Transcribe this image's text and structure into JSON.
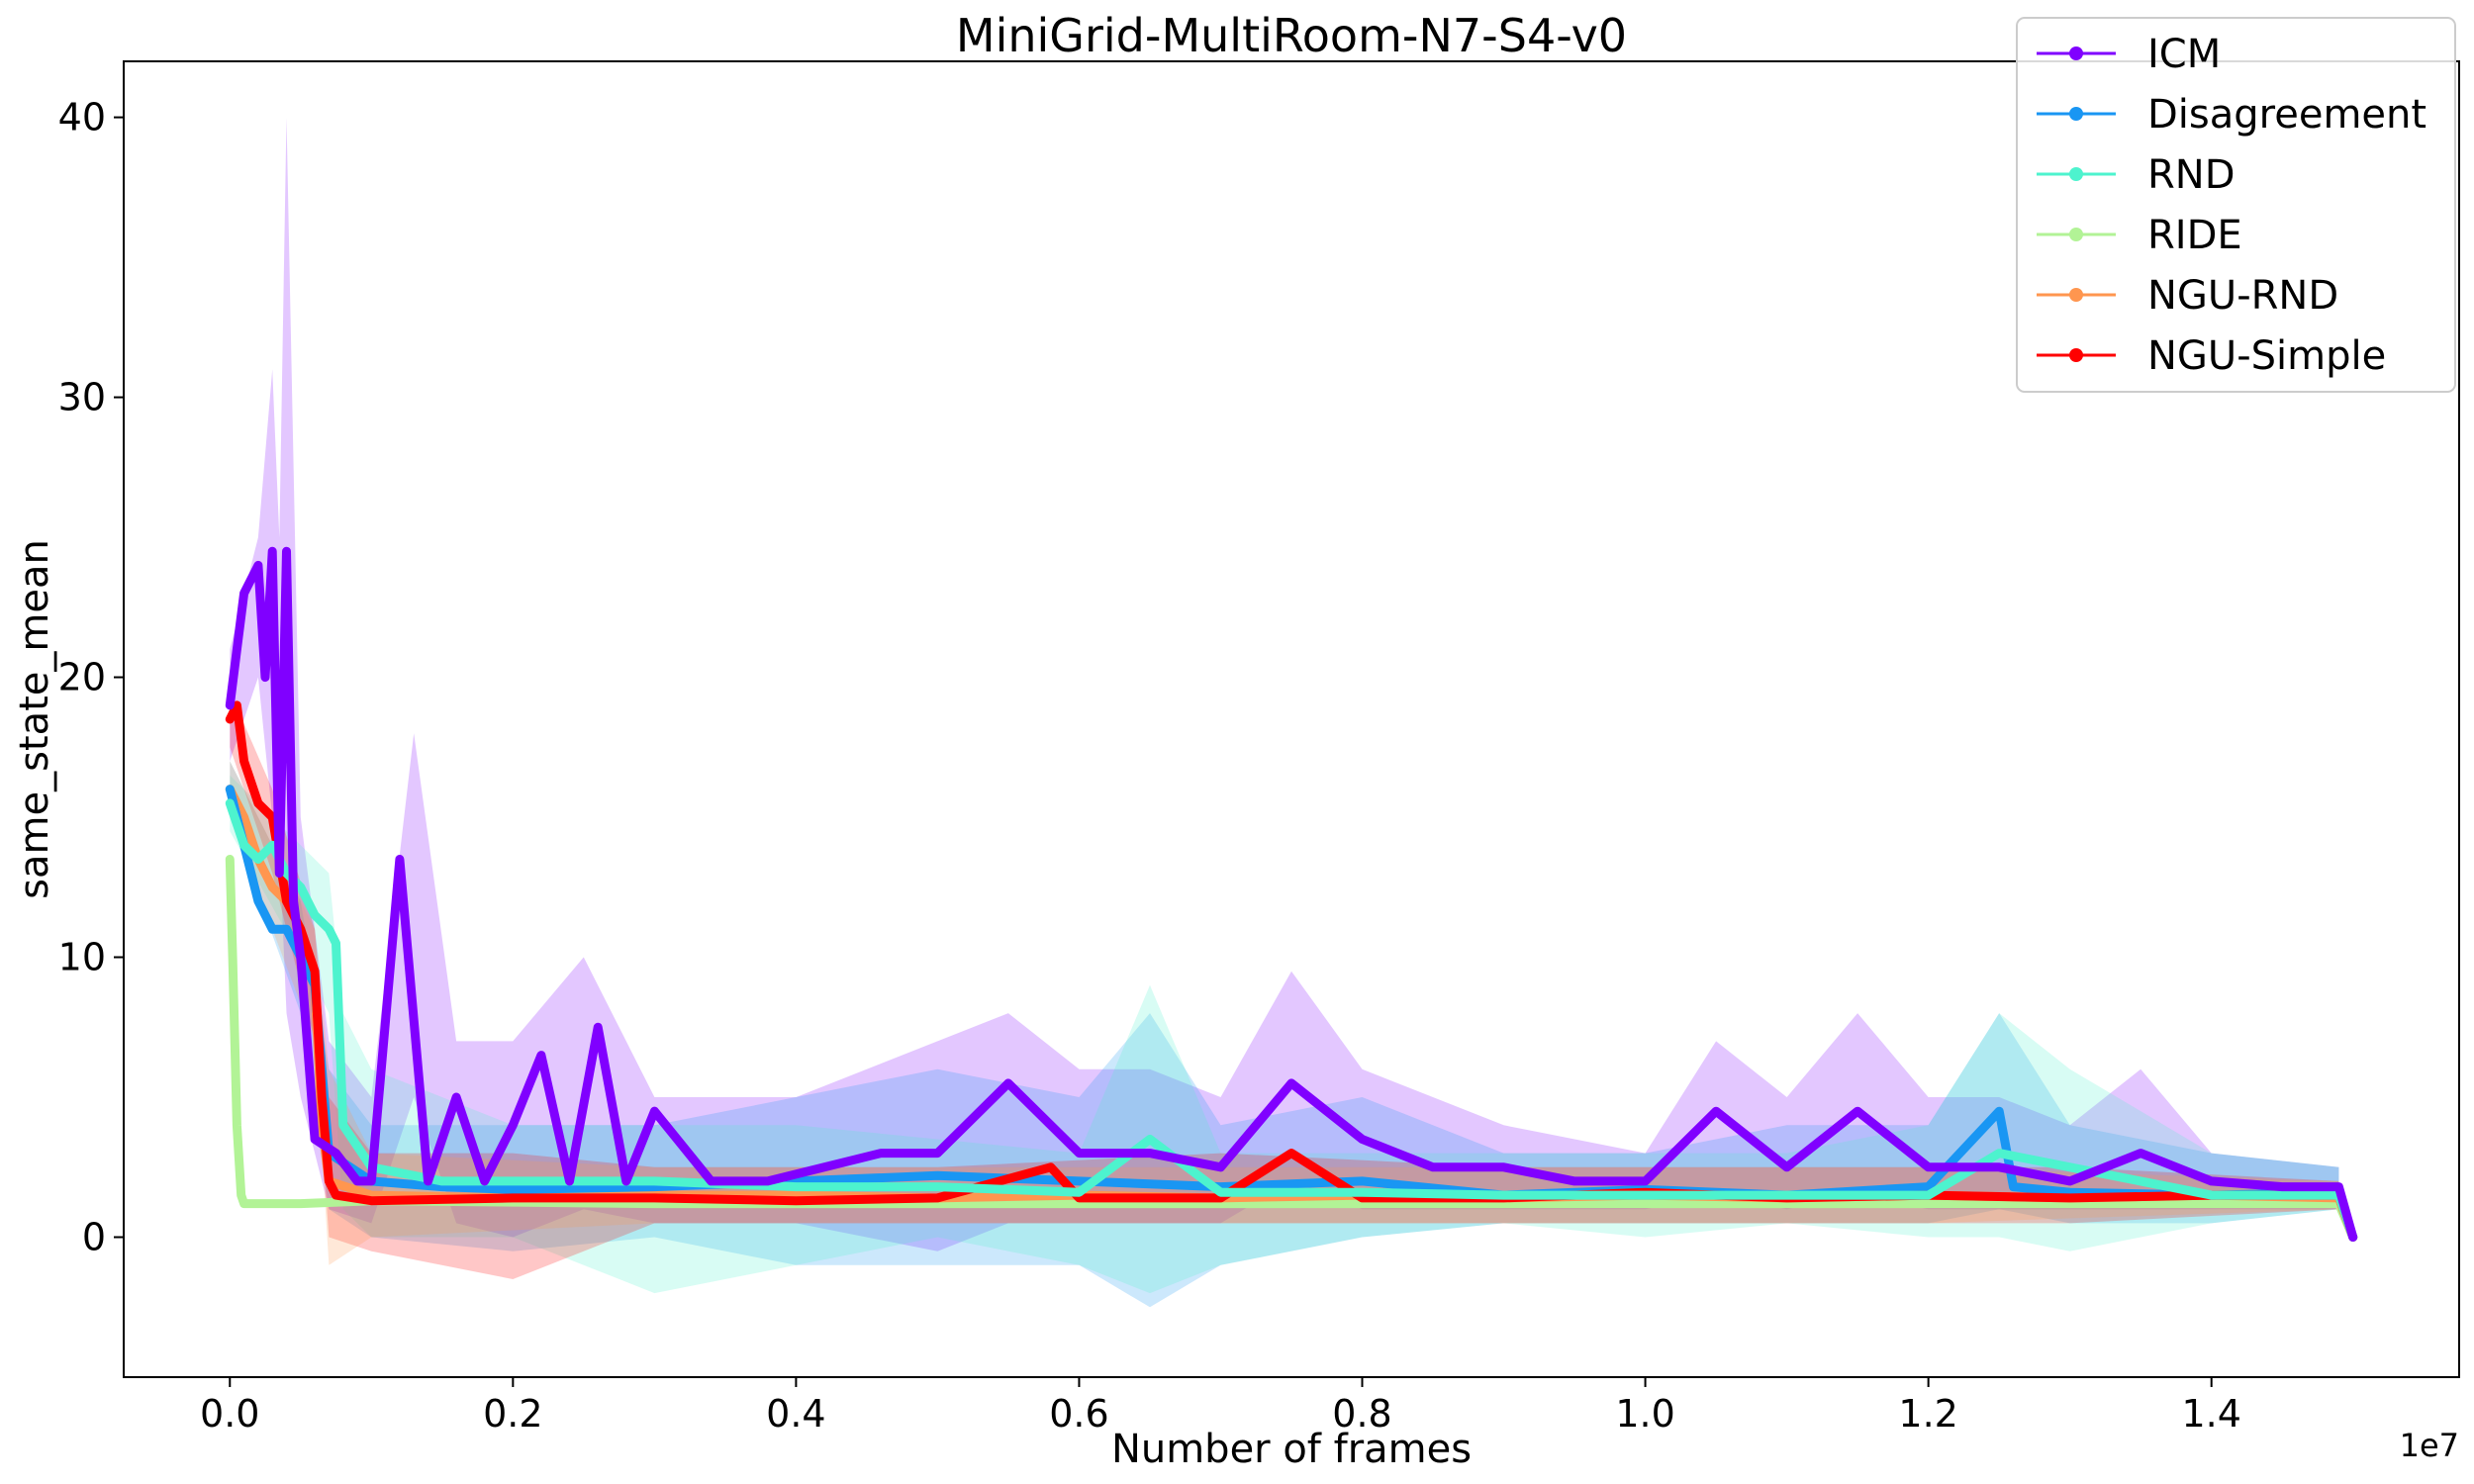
{
  "chart_data": {
    "type": "line",
    "title": "MiniGrid-MultiRoom-N7-S4-v0",
    "xlabel": "Number of frames",
    "ylabel": "same_state_mean",
    "x_offset_label": "1e7",
    "xlim": [
      -0.075,
      1.575
    ],
    "ylim": [
      -5,
      42
    ],
    "x_ticks": [
      0.0,
      0.2,
      0.4,
      0.6,
      0.8,
      1.0,
      1.2,
      1.4
    ],
    "x_tick_labels": [
      "0.0",
      "0.2",
      "0.4",
      "0.6",
      "0.8",
      "1.0",
      "1.2",
      "1.4"
    ],
    "y_ticks": [
      0,
      10,
      20,
      30,
      40
    ],
    "y_tick_labels": [
      "0",
      "10",
      "20",
      "30",
      "40"
    ],
    "grid": false,
    "legend_position": "top-right",
    "series": [
      {
        "name": "ICM",
        "color": "#8000ff",
        "x": [
          0.0,
          0.005,
          0.01,
          0.02,
          0.025,
          0.03,
          0.035,
          0.04,
          0.045,
          0.05,
          0.06,
          0.075,
          0.09,
          0.1,
          0.12,
          0.14,
          0.16,
          0.18,
          0.2,
          0.22,
          0.24,
          0.26,
          0.28,
          0.3,
          0.34,
          0.38,
          0.42,
          0.46,
          0.5,
          0.55,
          0.6,
          0.65,
          0.7,
          0.75,
          0.8,
          0.85,
          0.9,
          0.95,
          1.0,
          1.05,
          1.1,
          1.15,
          1.2,
          1.25,
          1.3,
          1.35,
          1.4,
          1.45,
          1.49,
          1.5
        ],
        "y": [
          19,
          21,
          23,
          24,
          20,
          24.5,
          13,
          24.5,
          12,
          10,
          3.5,
          3,
          2,
          2,
          13.5,
          2,
          5,
          2,
          4,
          6.5,
          2,
          7.5,
          2,
          4.5,
          2,
          2,
          2.5,
          3,
          3,
          5.5,
          3,
          3,
          2.5,
          5.5,
          3.5,
          2.5,
          2.5,
          2,
          2,
          4.5,
          2.5,
          4.5,
          2.5,
          2.5,
          2,
          3,
          2,
          1.8,
          1.8,
          0
        ]
      },
      {
        "name": "Disagreement",
        "color": "#1996f3",
        "x": [
          0.0,
          0.01,
          0.02,
          0.03,
          0.04,
          0.05,
          0.06,
          0.07,
          0.1,
          0.15,
          0.2,
          0.3,
          0.4,
          0.5,
          0.6,
          0.7,
          0.8,
          0.9,
          1.0,
          1.1,
          1.2,
          1.25,
          1.26,
          1.3,
          1.4,
          1.49,
          1.5
        ],
        "y": [
          16,
          14,
          12,
          11,
          11,
          10,
          9,
          3,
          2,
          1.8,
          1.7,
          1.8,
          2,
          2.2,
          2,
          1.8,
          2,
          1.5,
          1.7,
          1.5,
          1.8,
          4.5,
          1.8,
          1.6,
          1.5,
          1.6,
          0
        ]
      },
      {
        "name": "RND",
        "color": "#4df3ce",
        "x": [
          0.0,
          0.01,
          0.02,
          0.03,
          0.04,
          0.05,
          0.06,
          0.07,
          0.075,
          0.08,
          0.1,
          0.15,
          0.2,
          0.3,
          0.4,
          0.5,
          0.6,
          0.65,
          0.7,
          0.8,
          0.9,
          1.0,
          1.1,
          1.2,
          1.25,
          1.3,
          1.4,
          1.49,
          1.5
        ],
        "y": [
          15.5,
          14,
          13.5,
          14,
          13,
          12.5,
          11.5,
          11,
          10.5,
          4,
          2.5,
          2,
          2,
          2,
          1.8,
          1.8,
          1.6,
          3.5,
          1.6,
          1.6,
          1.5,
          1.5,
          1.5,
          1.5,
          3,
          2.5,
          1.5,
          1.5,
          0
        ]
      },
      {
        "name": "RIDE",
        "color": "#b2f396",
        "x": [
          0.0,
          0.002,
          0.005,
          0.008,
          0.01,
          0.02,
          0.05,
          0.1,
          0.3,
          0.6,
          0.9,
          1.2,
          1.49,
          1.5
        ],
        "y": [
          13.5,
          10,
          4,
          1.5,
          1.2,
          1.2,
          1.2,
          1.3,
          1.2,
          1.2,
          1.2,
          1.2,
          1.2,
          0
        ]
      },
      {
        "name": "NGU-RND",
        "color": "#ff964f",
        "x": [
          0.0,
          0.01,
          0.02,
          0.03,
          0.04,
          0.05,
          0.06,
          0.065,
          0.07,
          0.1,
          0.2,
          0.3,
          0.4,
          0.5,
          0.6,
          0.7,
          0.8,
          0.9,
          1.0,
          1.1,
          1.2,
          1.3,
          1.4,
          1.49,
          1.5
        ],
        "y": [
          16,
          15,
          13.5,
          12.5,
          12,
          11,
          9,
          4,
          2,
          1.5,
          1.4,
          1.5,
          1.5,
          1.4,
          1.5,
          1.4,
          1.5,
          1.4,
          1.5,
          1.4,
          1.5,
          1.4,
          1.5,
          1.4,
          0
        ]
      },
      {
        "name": "NGU-Simple",
        "color": "#ff0000",
        "x": [
          0.0,
          0.005,
          0.01,
          0.02,
          0.03,
          0.04,
          0.05,
          0.06,
          0.065,
          0.07,
          0.075,
          0.1,
          0.2,
          0.3,
          0.4,
          0.5,
          0.58,
          0.6,
          0.7,
          0.75,
          0.8,
          0.9,
          1.0,
          1.1,
          1.2,
          1.3,
          1.4,
          1.49,
          1.5
        ],
        "y": [
          18.5,
          19,
          17,
          15.5,
          15,
          12,
          11,
          9.5,
          5,
          2,
          1.5,
          1.3,
          1.4,
          1.4,
          1.3,
          1.4,
          2.5,
          1.4,
          1.4,
          3,
          1.4,
          1.4,
          1.6,
          1.4,
          1.5,
          1.4,
          1.5,
          1.5,
          0
        ]
      }
    ],
    "bands": [
      {
        "series": "ICM",
        "color": "#8000ff",
        "x": [
          0.0,
          0.02,
          0.03,
          0.035,
          0.04,
          0.05,
          0.07,
          0.1,
          0.13,
          0.16,
          0.2,
          0.25,
          0.3,
          0.4,
          0.5,
          0.55,
          0.6,
          0.65,
          0.7,
          0.75,
          0.8,
          0.9,
          1.0,
          1.05,
          1.1,
          1.15,
          1.2,
          1.25,
          1.3,
          1.35,
          1.4,
          1.49
        ],
        "upper": [
          21,
          25,
          31,
          25,
          40,
          15,
          7,
          5,
          18,
          7,
          7,
          10,
          5,
          5,
          7,
          8,
          6,
          6,
          5,
          9.5,
          6,
          4,
          3,
          7,
          5,
          8,
          5,
          5,
          4,
          6,
          3,
          2.5
        ],
        "lower": [
          17,
          20,
          15,
          14,
          8,
          5,
          1,
          0.5,
          5,
          0.5,
          0,
          1,
          0.5,
          0.5,
          -0.5,
          0.5,
          0.5,
          0.5,
          0.5,
          2,
          1,
          1,
          1,
          1.5,
          1,
          1.5,
          1,
          1,
          1,
          1,
          1,
          1
        ]
      },
      {
        "series": "Disagreement",
        "color": "#1996f3",
        "x": [
          0.0,
          0.05,
          0.07,
          0.1,
          0.2,
          0.3,
          0.4,
          0.5,
          0.6,
          0.65,
          0.7,
          0.8,
          0.9,
          1.0,
          1.1,
          1.2,
          1.25,
          1.3,
          1.4,
          1.49
        ],
        "upper": [
          17,
          12,
          6,
          4,
          4,
          4,
          5,
          6,
          5,
          8,
          4,
          5,
          3,
          3,
          4,
          4,
          8,
          4,
          3,
          2.5
        ],
        "lower": [
          15,
          8,
          1,
          0,
          -0.5,
          0,
          -1,
          -1,
          -1,
          -2.5,
          -1,
          0,
          0.5,
          0.5,
          0.5,
          0.5,
          1,
          0.5,
          0.5,
          1
        ]
      },
      {
        "series": "RND",
        "color": "#4df3ce",
        "x": [
          0.0,
          0.05,
          0.07,
          0.08,
          0.1,
          0.2,
          0.3,
          0.4,
          0.5,
          0.6,
          0.65,
          0.7,
          0.8,
          0.9,
          1.0,
          1.1,
          1.2,
          1.25,
          1.3,
          1.4,
          1.49
        ],
        "upper": [
          16.5,
          14,
          13,
          8,
          6,
          4,
          4,
          4,
          3.5,
          3,
          9,
          3,
          3,
          3,
          3,
          3,
          4,
          8,
          6,
          3,
          2.5
        ],
        "lower": [
          14.5,
          10,
          8,
          1,
          0,
          0,
          -2,
          -1,
          0,
          -1,
          -2,
          -1,
          0,
          0.5,
          0,
          0.5,
          0,
          0,
          -0.5,
          0.5,
          1
        ]
      },
      {
        "series": "NGU-Simple",
        "color": "#ff0000",
        "x": [
          0.0,
          0.03,
          0.06,
          0.07,
          0.1,
          0.2,
          0.3,
          0.5,
          0.7,
          0.9,
          1.1,
          1.3,
          1.49
        ],
        "upper": [
          19.5,
          16,
          11,
          5,
          3,
          3,
          2.5,
          2.5,
          3,
          2.5,
          2.5,
          2.5,
          2
        ],
        "lower": [
          17.5,
          13,
          7,
          0,
          -0.5,
          -1.5,
          0.5,
          0.5,
          0.5,
          0.5,
          0.5,
          0.5,
          1
        ]
      },
      {
        "series": "NGU-RND",
        "color": "#ff964f",
        "x": [
          0.0,
          0.03,
          0.06,
          0.07,
          0.1,
          0.3,
          0.6,
          0.9,
          1.2,
          1.49
        ],
        "upper": [
          17,
          14,
          11,
          6,
          3,
          2.5,
          2.5,
          2.5,
          2.5,
          2
        ],
        "lower": [
          15,
          11,
          7,
          -1,
          0,
          0.5,
          0.5,
          0.5,
          0.5,
          1
        ]
      }
    ]
  }
}
